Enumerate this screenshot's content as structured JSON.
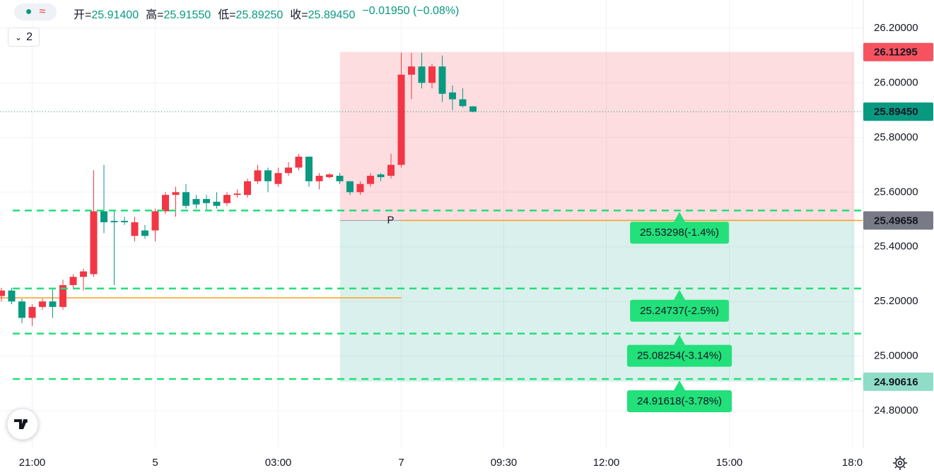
{
  "chart_data": {
    "type": "candlestick",
    "header": {
      "items": [
        {
          "label": "开=",
          "value": "25.91400"
        },
        {
          "label": "高=",
          "value": "25.91550"
        },
        {
          "label": "低=",
          "value": "25.89250"
        },
        {
          "label": "收=",
          "value": "25.89450"
        }
      ],
      "change": "−0.01950 (−0.08%)"
    },
    "legend_toggle": "2",
    "up_color": "#f23645",
    "down_color": "#089981",
    "open": [
      25.22,
      25.24,
      25.2,
      25.14,
      25.18,
      25.2,
      25.18,
      25.26,
      25.29,
      25.3,
      25.53,
      25.495,
      25.495,
      25.44,
      25.46,
      25.46,
      25.53,
      25.59,
      25.6,
      25.575,
      25.575,
      25.565,
      25.56,
      25.59,
      25.59,
      25.64,
      25.68,
      25.63,
      25.67,
      25.69,
      25.73,
      25.64,
      25.655,
      25.66,
      25.64,
      25.6,
      25.63,
      25.665,
      25.66,
      25.7,
      26.03,
      26.06,
      26.0,
      26.06,
      25.965,
      25.94,
      25.914
    ],
    "high": [
      25.25,
      25.25,
      25.21,
      25.19,
      25.21,
      25.25,
      25.28,
      25.3,
      25.32,
      25.68,
      25.7,
      25.53,
      25.51,
      25.51,
      25.48,
      25.54,
      25.6,
      25.62,
      25.63,
      25.59,
      25.59,
      25.6,
      25.6,
      25.61,
      25.65,
      25.7,
      25.69,
      25.69,
      25.71,
      25.74,
      25.73,
      25.67,
      25.67,
      25.67,
      25.64,
      25.64,
      25.67,
      25.67,
      25.74,
      26.11,
      26.11,
      26.11,
      26.07,
      26.1,
      25.99,
      25.98,
      25.9155
    ],
    "low": [
      25.2,
      25.19,
      25.12,
      25.11,
      25.17,
      25.14,
      25.17,
      25.25,
      25.24,
      25.29,
      25.45,
      25.26,
      25.48,
      25.42,
      25.43,
      25.42,
      25.52,
      25.51,
      25.54,
      25.54,
      25.53,
      25.54,
      25.55,
      25.58,
      25.58,
      25.63,
      25.6,
      25.62,
      25.66,
      25.68,
      25.62,
      25.61,
      25.65,
      25.63,
      25.59,
      25.59,
      25.62,
      25.64,
      25.65,
      25.69,
      25.94,
      25.98,
      25.98,
      25.93,
      25.9,
      25.91,
      25.8925
    ],
    "close": [
      25.24,
      25.2,
      25.14,
      25.18,
      25.2,
      25.18,
      25.26,
      25.29,
      25.31,
      25.53,
      25.49,
      25.49,
      25.49,
      25.49,
      25.44,
      25.53,
      25.59,
      25.6,
      25.55,
      25.555,
      25.56,
      25.55,
      25.59,
      25.595,
      25.64,
      25.68,
      25.64,
      25.67,
      25.69,
      25.73,
      25.64,
      25.66,
      25.665,
      25.64,
      25.6,
      25.63,
      25.66,
      25.655,
      25.7,
      26.03,
      26.06,
      26.0,
      26.06,
      25.96,
      25.94,
      25.915,
      25.8945
    ],
    "xlim": [
      -0.138,
      84
    ],
    "xticks": [
      {
        "value": 3,
        "label": "21:00"
      },
      {
        "value": 15,
        "label": "5"
      },
      {
        "value": 27,
        "label": "03:00"
      },
      {
        "value": 39,
        "label": "7"
      },
      {
        "value": 49,
        "label": "09:30"
      },
      {
        "value": 59,
        "label": "12:00"
      },
      {
        "value": 71,
        "label": "15:00"
      },
      {
        "value": 83,
        "label": "18:0"
      }
    ],
    "ylim": [
      24.66568,
      26.30332
    ],
    "yticks": [
      {
        "value": 26.2,
        "label": "26.20000"
      },
      {
        "value": 26.0,
        "label": "26.00000"
      },
      {
        "value": 25.8,
        "label": "25.80000"
      },
      {
        "value": 25.6,
        "label": "25.60000"
      },
      {
        "value": 25.4,
        "label": "25.40000"
      },
      {
        "value": 25.2,
        "label": "25.20000"
      },
      {
        "value": 25.0,
        "label": "25.00000"
      },
      {
        "value": 24.8,
        "label": "24.80000"
      }
    ],
    "grid": true,
    "current_price": 25.8945,
    "position": {
      "stop": 26.11295,
      "entry": 25.49658,
      "target": 24.90616,
      "x_range": [
        33.03,
        83.2
      ]
    },
    "pivot_lines": [
      {
        "value": 25.2133,
        "x_range": [
          -0.138,
          39
        ]
      },
      {
        "value": 25.49658,
        "x_range": [
          39,
          84
        ]
      }
    ],
    "pivot_label": "P",
    "levels": [
      {
        "value": 25.53298,
        "label": "25.53298(-1.4%)"
      },
      {
        "value": 25.24737,
        "label": "25.24737(-2.5%)"
      },
      {
        "value": 25.08254,
        "label": "25.08254(-3.14%)"
      },
      {
        "value": 24.91618,
        "label": "24.91618(-3.78%)"
      }
    ],
    "price_tags": [
      {
        "value": 26.11295,
        "label": "26.11295",
        "color": "#f7525f"
      },
      {
        "value": 25.8945,
        "label": "25.89450",
        "color": "#089981"
      },
      {
        "value": 25.49658,
        "label": "25.49658",
        "color": "#787b86"
      },
      {
        "value": 24.90616,
        "label": "24.90616",
        "color": "#8fdcc8"
      }
    ]
  }
}
